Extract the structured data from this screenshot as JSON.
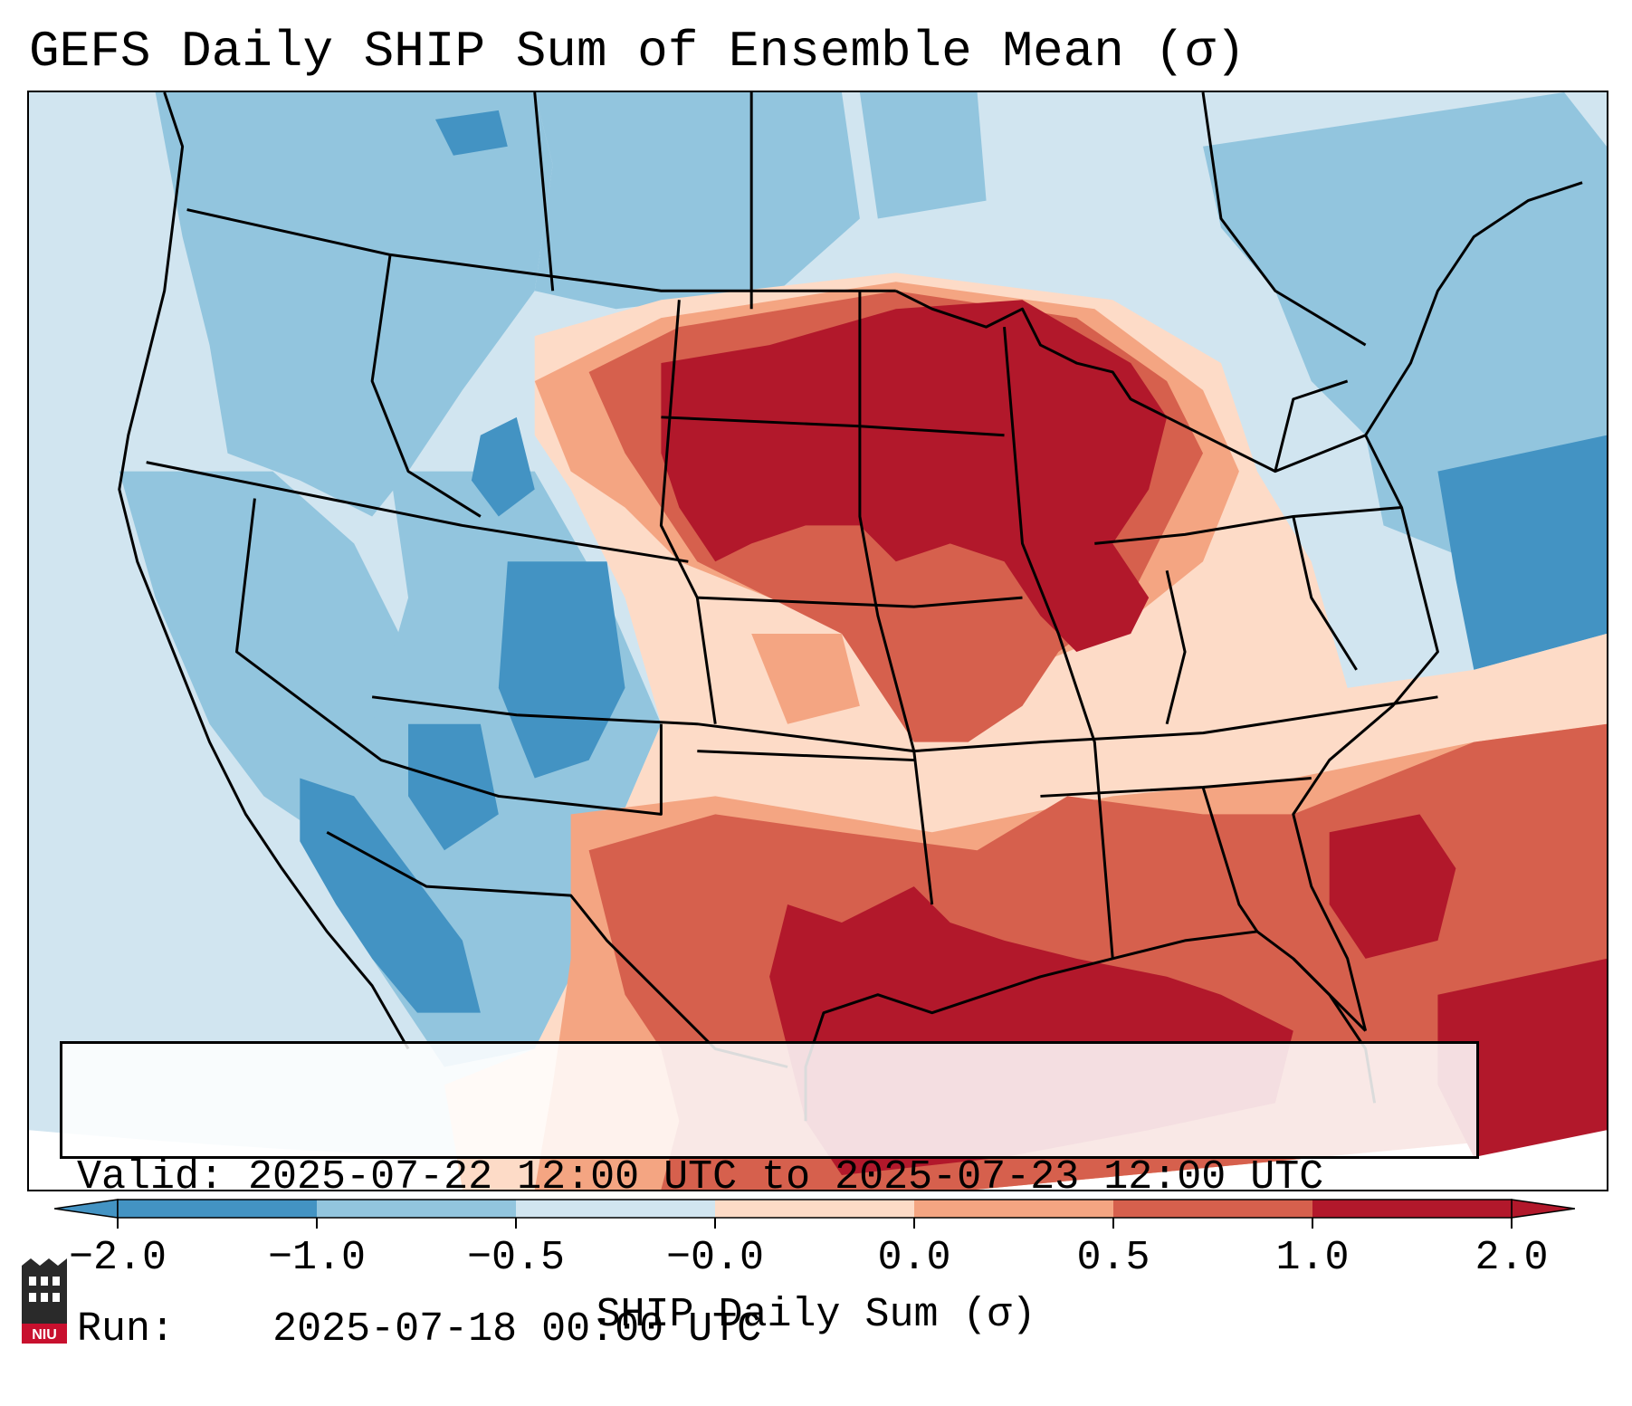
{
  "title": "GEFS Daily SHIP Sum of Ensemble Mean (σ)",
  "info": {
    "valid_label": "Valid:",
    "valid_value": "2025-07-22 12:00 UTC to 2025-07-23 12:00 UTC",
    "run_label": "Run:",
    "run_value": "2025-07-18 00:00 UTC"
  },
  "colorbar": {
    "label": "SHIP Daily Sum (σ)",
    "ticks": [
      "−2.0",
      "−1.0",
      "−0.5",
      "−0.0",
      "0.0",
      "0.5",
      "1.0",
      "2.0"
    ],
    "colors": [
      "#4393c3",
      "#92c5de",
      "#d1e5f0",
      "#fddbc7",
      "#f4a582",
      "#d6604d",
      "#b2182b"
    ],
    "extend": "both"
  },
  "palette": {
    "strong_negative": "#4393c3",
    "negative": "#92c5de",
    "weak_negative": "#d1e5f0",
    "weak_positive": "#fddbc7",
    "positive": "#f4a582",
    "moderate_positive": "#d6604d",
    "strong_positive": "#b2182b"
  },
  "logo": {
    "text": "NIU"
  }
}
